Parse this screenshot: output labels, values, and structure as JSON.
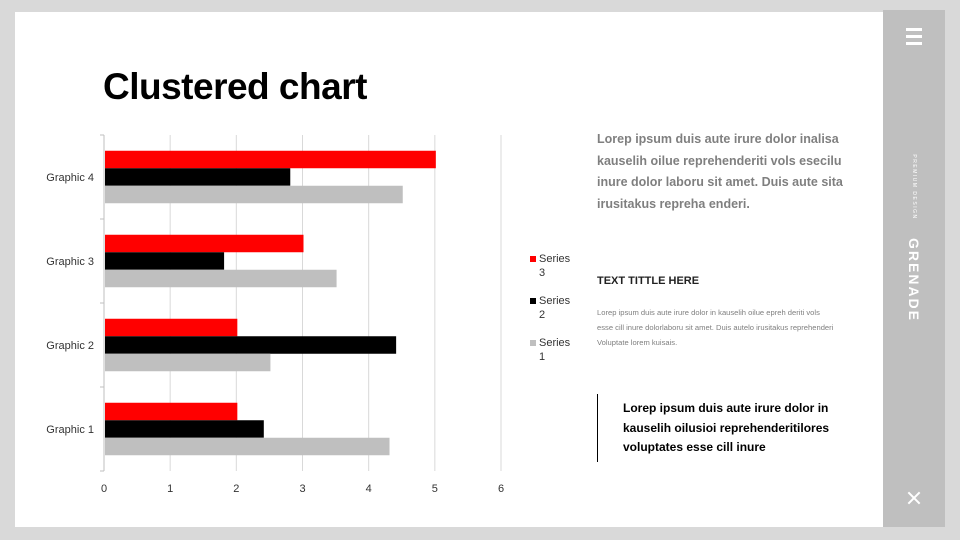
{
  "title": "Clustered chart",
  "side_panel": {
    "premium_text": "PREMIUM DESIGN",
    "brand": "GRENADE",
    "menu_icon": "hamburger-menu-icon",
    "close_icon": "close-x-icon"
  },
  "colors": {
    "series3": "#ff0000",
    "series2": "#000000",
    "series1": "#bfbfbf",
    "panel": "#bfbfbf",
    "background": "#d9d9d9"
  },
  "chart_data": {
    "type": "bar",
    "orientation": "horizontal",
    "categories": [
      "Graphic 1",
      "Graphic 2",
      "Graphic 3",
      "Graphic 4"
    ],
    "series": [
      {
        "name": "Series 3",
        "color": "#ff0000",
        "values": [
          2.0,
          2.0,
          3.0,
          5.0
        ]
      },
      {
        "name": "Series 2",
        "color": "#000000",
        "values": [
          2.4,
          4.4,
          1.8,
          2.8
        ]
      },
      {
        "name": "Series 1",
        "color": "#bfbfbf",
        "values": [
          4.3,
          2.5,
          3.5,
          4.5
        ]
      }
    ],
    "xlim": [
      0,
      6
    ],
    "xticks": [
      "0",
      "1",
      "2",
      "3",
      "4",
      "5",
      "6"
    ],
    "grid": "vertical",
    "legend_position": "right",
    "legend": [
      {
        "line1": "Series",
        "line2": "3",
        "color": "#ff0000"
      },
      {
        "line1": "Series",
        "line2": "2",
        "color": "#000000"
      },
      {
        "line1": "Series",
        "line2": "1",
        "color": "#bfbfbf"
      }
    ]
  },
  "text": {
    "para1": "Lorep  ipsum duis aute irure dolor inalisa kauselih oilue reprehenderiti vols esecilu inure dolor laboru sit amet. Duis aute sita irusitakus repreha enderi.",
    "subhead": "TEXT TITTLE HERE",
    "para2": "Lorep  ipsum duis aute irure dolor in kauselih oilue epreh deriti vols esse cill inure dolorlaboru sit amet. Duis autelo irusitakus reprehenderi Voluptate lorem kuisais.",
    "quote": "Lorep  ipsum duis aute irure dolor in kauselih oilusioi reprehenderitilores voluptates esse cill inure"
  }
}
